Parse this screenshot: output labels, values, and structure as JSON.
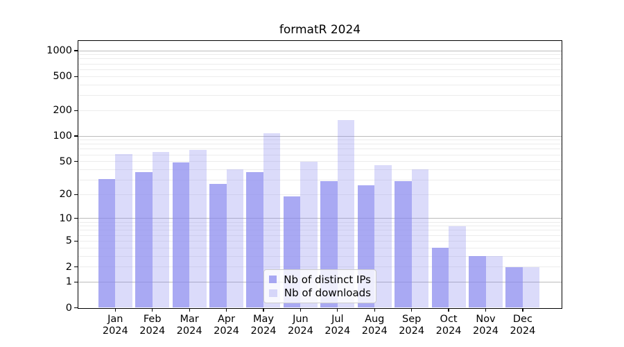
{
  "chart_data": {
    "type": "bar",
    "title": "formatR 2024",
    "categories": [
      "Jan 2024",
      "Feb 2024",
      "Mar 2024",
      "Apr 2024",
      "May 2024",
      "Jun 2024",
      "Jul 2024",
      "Aug 2024",
      "Sep 2024",
      "Oct 2024",
      "Nov 2024",
      "Dec 2024"
    ],
    "series": [
      {
        "name": "Nb of distinct IPs",
        "color": "rgba(136,136,238,0.72)",
        "base_color": "#8888ee",
        "alpha": 0.72,
        "values": [
          31,
          37,
          49,
          27,
          37,
          19,
          29,
          26,
          29,
          4,
          3,
          2
        ]
      },
      {
        "name": "Nb of downloads",
        "color": "rgba(136,136,238,0.30)",
        "base_color": "#8888ee",
        "alpha": 0.3,
        "values": [
          61,
          65,
          68,
          40,
          108,
          50,
          155,
          45,
          40,
          8,
          3,
          2
        ]
      }
    ],
    "xlabel": "",
    "ylabel": "",
    "y_scale": "log10(value+1)",
    "y_ticks": [
      0,
      1,
      2,
      5,
      10,
      20,
      50,
      100,
      200,
      500,
      1000
    ],
    "ylim": [
      0,
      1300
    ],
    "grid": true,
    "major_grid_values": [
      1,
      10,
      100,
      1000
    ],
    "major_grid_color": "#bbbbbb",
    "minor_grid_color": "#ececec",
    "legend_position": "lower-center"
  }
}
